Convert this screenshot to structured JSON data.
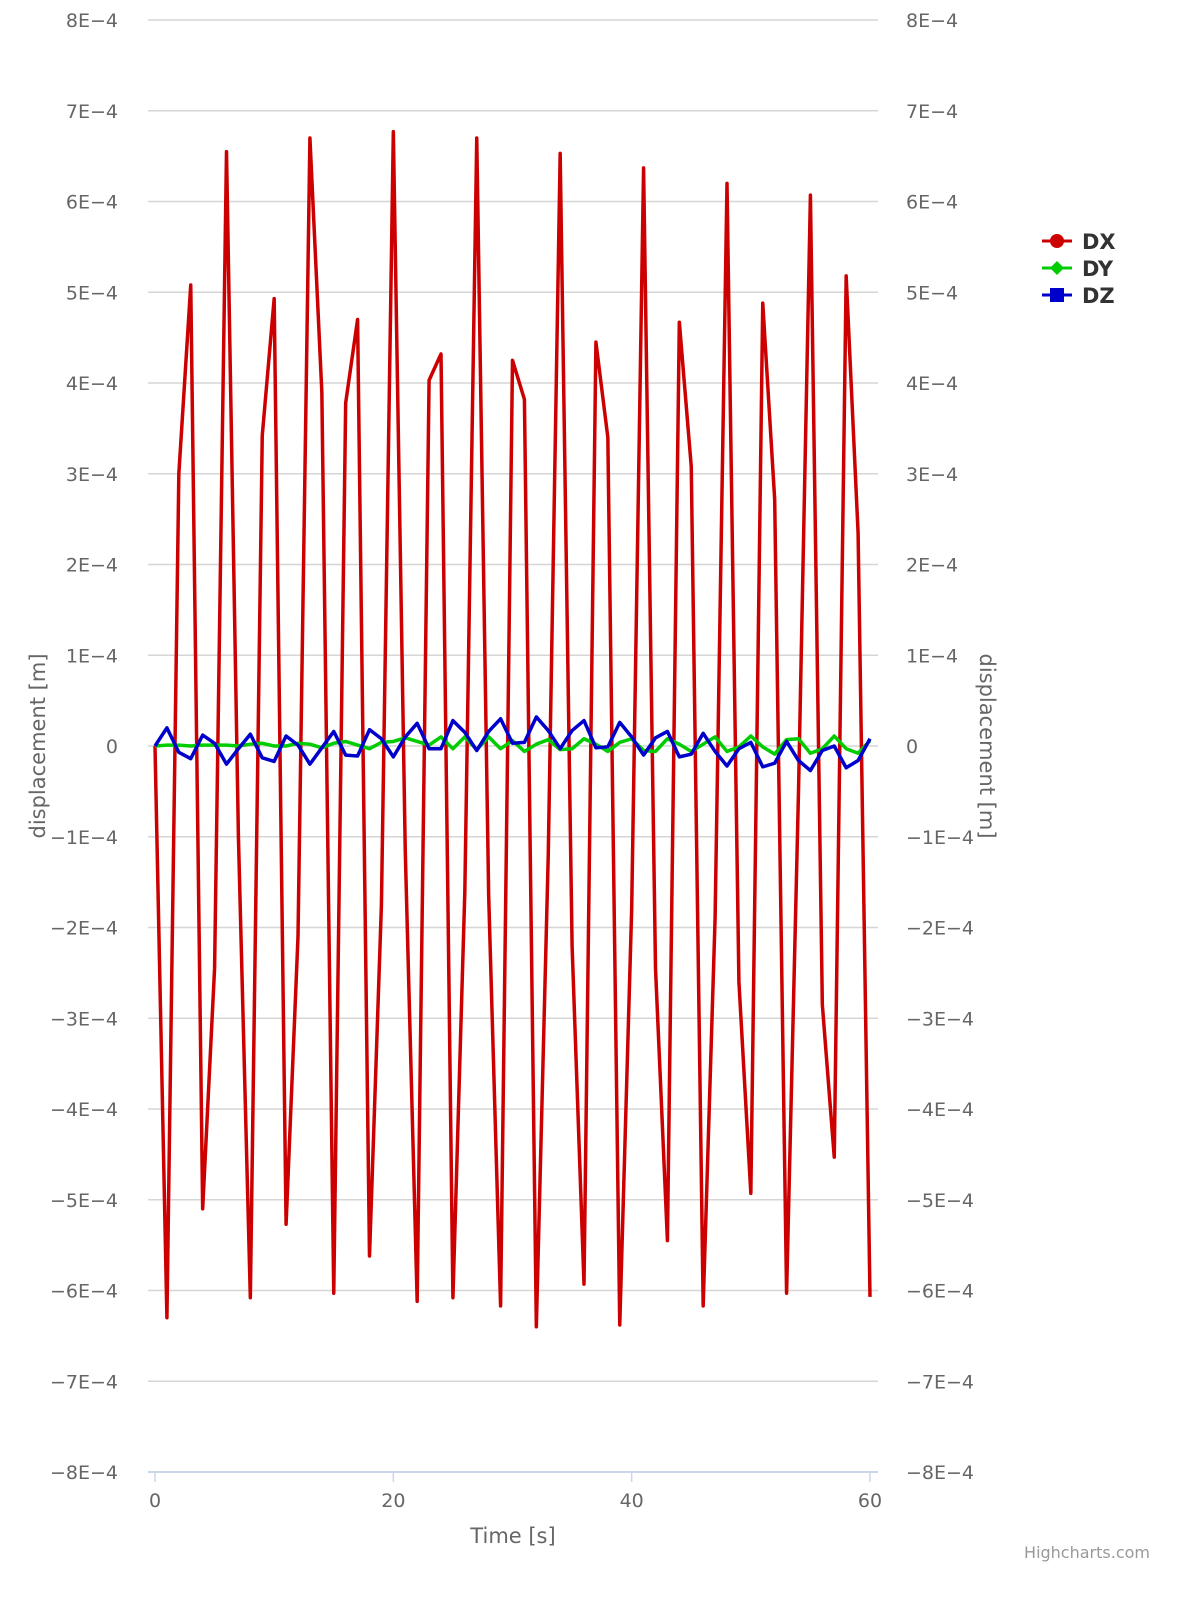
{
  "chart_data": {
    "type": "line",
    "title": "",
    "xlabel": "Time [s]",
    "ylabel": "displacement [m]",
    "ylabel_right": "displacement [m]",
    "xlim": [
      0,
      60
    ],
    "ylim": [
      -0.0008,
      0.0008
    ],
    "grid": true,
    "legend_position": "right",
    "x_ticks": [
      0,
      20,
      40,
      60
    ],
    "x_tick_labels": [
      "0",
      "20",
      "40",
      "60"
    ],
    "y_ticks": [
      0.0008,
      0.0007,
      0.0006,
      0.0005,
      0.0004,
      0.0003,
      0.0002,
      0.0001,
      0,
      -0.0001,
      -0.0002,
      -0.0003,
      -0.0004,
      -0.0005,
      -0.0006,
      -0.0007,
      -0.0008
    ],
    "y_tick_labels": [
      "8E−4",
      "7E−4",
      "6E−4",
      "5E−4",
      "4E−4",
      "3E−4",
      "2E−4",
      "1E−4",
      "0",
      "−1E−4",
      "−2E−4",
      "−3E−4",
      "−4E−4",
      "−5E−4",
      "−6E−4",
      "−7E−4",
      "−8E−4"
    ],
    "x": [
      0,
      1,
      2,
      3,
      4,
      5,
      6,
      7,
      8,
      9,
      10,
      11,
      12,
      13,
      14,
      15,
      16,
      17,
      18,
      19,
      20,
      21,
      22,
      23,
      24,
      25,
      26,
      27,
      28,
      29,
      30,
      31,
      32,
      33,
      34,
      35,
      36,
      37,
      38,
      39,
      40,
      41,
      42,
      43,
      44,
      45,
      46,
      47,
      48,
      49,
      50,
      51,
      52,
      53,
      54,
      55,
      56,
      57,
      58,
      59,
      60
    ],
    "series": [
      {
        "name": "DX",
        "color": "#cc0000",
        "marker": "circle",
        "values_e4": [
          0,
          -6.3,
          3.0,
          5.08,
          -5.1,
          -2.45,
          6.55,
          -1.0,
          -6.08,
          3.42,
          4.93,
          -5.27,
          -2.1,
          6.7,
          3.9,
          -6.03,
          3.78,
          4.7,
          -5.62,
          -1.75,
          6.77,
          -1.15,
          -6.12,
          4.03,
          4.32,
          -6.08,
          -1.6,
          6.7,
          -1.65,
          -6.17,
          4.25,
          3.82,
          -6.4,
          -1.2,
          6.53,
          -2.2,
          -5.93,
          4.45,
          3.4,
          -6.38,
          -1.8,
          6.37,
          -2.45,
          -5.45,
          4.67,
          3.08,
          -6.17,
          -1.9,
          6.2,
          -2.6,
          -4.93,
          4.88,
          2.72,
          -6.03,
          -0.5,
          6.07,
          -2.85,
          -4.53,
          5.18,
          2.35,
          -6.07
        ]
      },
      {
        "name": "DY",
        "color": "#00cc00",
        "marker": "diamond",
        "values_e4": [
          0,
          0.01,
          0.01,
          0,
          0.01,
          0.01,
          0.01,
          0,
          0.02,
          0.03,
          0,
          0,
          0.03,
          0.02,
          -0.02,
          0.03,
          0.05,
          0.01,
          -0.03,
          0.04,
          0.05,
          0.09,
          0.05,
          0.01,
          0.1,
          -0.03,
          0.1,
          -0.04,
          0.1,
          -0.03,
          0.06,
          -0.06,
          0.02,
          0.07,
          -0.04,
          -0.03,
          0.08,
          0.02,
          -0.06,
          0.04,
          0.08,
          -0.05,
          -0.06,
          0.08,
          0.02,
          -0.06,
          0.02,
          0.1,
          -0.06,
          -0.01,
          0.11,
          -0.01,
          -0.09,
          0.07,
          0.08,
          -0.08,
          -0.03,
          0.11,
          -0.03,
          -0.08,
          0.06
        ]
      },
      {
        "name": "DZ",
        "color": "#0000cc",
        "marker": "square",
        "values_e4": [
          0,
          0.2,
          -0.07,
          -0.14,
          0.12,
          0.03,
          -0.2,
          -0.03,
          0.13,
          -0.13,
          -0.17,
          0.11,
          0.01,
          -0.2,
          -0.02,
          0.16,
          -0.1,
          -0.11,
          0.18,
          0.08,
          -0.12,
          0.1,
          0.25,
          -0.03,
          -0.03,
          0.28,
          0.15,
          -0.05,
          0.16,
          0.3,
          0.03,
          0.04,
          0.32,
          0.17,
          -0.03,
          0.17,
          0.28,
          -0.02,
          -0.01,
          0.26,
          0.1,
          -0.1,
          0.09,
          0.16,
          -0.12,
          -0.09,
          0.14,
          -0.06,
          -0.22,
          -0.03,
          0.04,
          -0.23,
          -0.19,
          0.05,
          -0.16,
          -0.27,
          -0.05,
          0,
          -0.24,
          -0.16,
          0.08
        ]
      }
    ],
    "credit": "Highcharts.com"
  }
}
